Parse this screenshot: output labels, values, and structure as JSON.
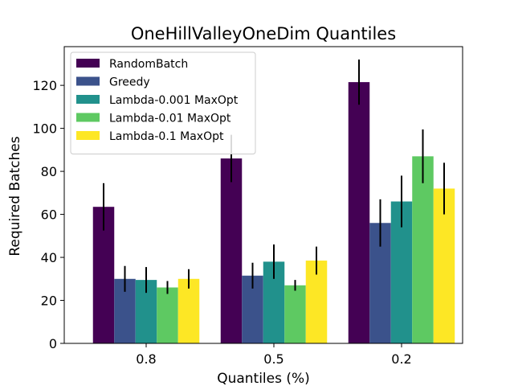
{
  "chart_data": {
    "type": "bar",
    "title": "OneHillValleyOneDim Quantiles",
    "xlabel": "Quantiles (%)",
    "ylabel": "Required Batches",
    "categories": [
      "0.8",
      "0.5",
      "0.2"
    ],
    "ylim": [
      0,
      138
    ],
    "yticks": [
      0,
      20,
      40,
      60,
      80,
      100,
      120
    ],
    "legend_position": "top-left",
    "series": [
      {
        "name": "RandomBatch",
        "color": "#440154",
        "values": [
          63.5,
          86,
          121.5
        ],
        "errors": [
          11,
          11,
          10.5
        ]
      },
      {
        "name": "Greedy",
        "color": "#3b528b",
        "values": [
          30,
          31.5,
          56
        ],
        "errors": [
          6,
          6,
          11
        ]
      },
      {
        "name": "Lambda-0.001 MaxOpt",
        "color": "#21918c",
        "values": [
          29.5,
          38,
          66
        ],
        "errors": [
          6,
          8,
          12
        ]
      },
      {
        "name": "Lambda-0.01 MaxOpt",
        "color": "#5ec962",
        "values": [
          26,
          27,
          87
        ],
        "errors": [
          3,
          2.5,
          12.5
        ]
      },
      {
        "name": "Lambda-0.1 MaxOpt",
        "color": "#fde725",
        "values": [
          30,
          38.5,
          72
        ],
        "errors": [
          4.5,
          6.5,
          12
        ]
      }
    ]
  }
}
